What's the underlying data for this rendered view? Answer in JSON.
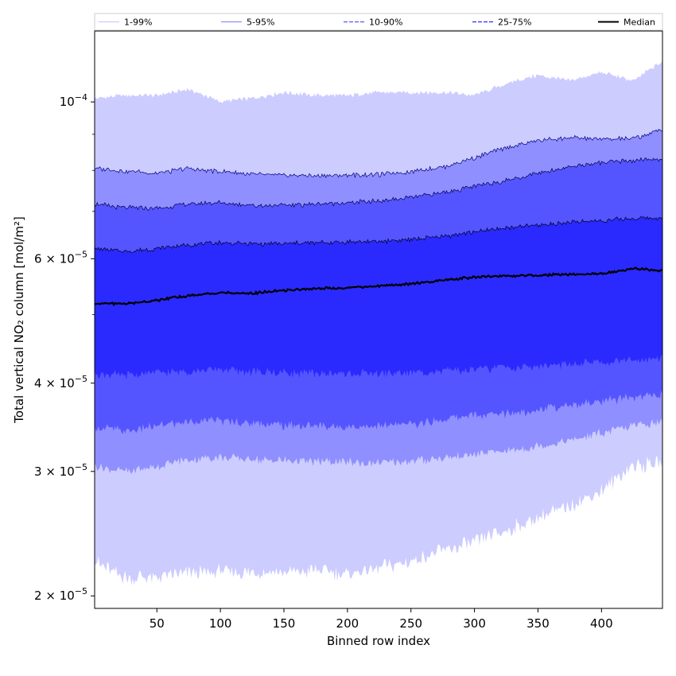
{
  "chart_data": {
    "type": "area",
    "title": "",
    "xlabel": "Binned row index",
    "ylabel": "Total vertical NO₂ column [mol/m²]",
    "xlim": [
      1,
      448
    ],
    "ylim": [
      1.92e-05,
      0.000126
    ],
    "yscale": "log",
    "x_ticks": [
      50,
      100,
      150,
      200,
      250,
      300,
      350,
      400
    ],
    "y_ticks": [
      {
        "value": 2e-05,
        "mantissa": "2",
        "exp": "−5"
      },
      {
        "value": 3e-05,
        "mantissa": "3",
        "exp": "−5"
      },
      {
        "value": 4e-05,
        "mantissa": "4",
        "exp": "−5"
      },
      {
        "value": 6e-05,
        "mantissa": "6",
        "exp": "−5"
      },
      {
        "value": 0.0001,
        "mantissa": "",
        "exp": "−4"
      }
    ],
    "y_minor_ticks": [
      5e-05,
      7e-05,
      8e-05,
      9e-05
    ],
    "grid": false,
    "legend_position": "top (horizontal strip above plot)",
    "x": [
      1,
      25,
      50,
      75,
      100,
      125,
      150,
      175,
      200,
      225,
      250,
      275,
      300,
      325,
      350,
      375,
      400,
      425,
      448
    ],
    "bands": [
      {
        "name": "1-99%",
        "color": "#ccccff",
        "edge": "#ccccff",
        "lower": [
          2.24e-05,
          2.12e-05,
          2.13e-05,
          2.15e-05,
          2.17e-05,
          2.16e-05,
          2.16e-05,
          2.17e-05,
          2.15e-05,
          2.19e-05,
          2.24e-05,
          2.31e-05,
          2.38e-05,
          2.47e-05,
          2.58e-05,
          2.68e-05,
          2.82e-05,
          3.06e-05,
          3.08e-05
        ],
        "upper": [
          0.000101,
          0.000102,
          0.000102,
          0.000104,
          0.0001,
          0.000101,
          0.000103,
          0.000102,
          0.000102,
          0.000103,
          0.000103,
          0.000103,
          0.000102,
          0.000106,
          0.000109,
          0.000107,
          0.00011,
          0.000107,
          0.000114
        ]
      },
      {
        "name": "5-95%",
        "color": "#8f8fff",
        "edge": "#000080",
        "lower": [
          3.05e-05,
          3e-05,
          3.05e-05,
          3.12e-05,
          3.14e-05,
          3.12e-05,
          3.11e-05,
          3.1e-05,
          3.09e-05,
          3.09e-05,
          3.1e-05,
          3.13e-05,
          3.17e-05,
          3.21e-05,
          3.26e-05,
          3.32e-05,
          3.4e-05,
          3.48e-05,
          3.52e-05
        ],
        "upper": [
          8.05e-05,
          7.98e-05,
          7.93e-05,
          8.05e-05,
          7.97e-05,
          7.9e-05,
          7.87e-05,
          7.86e-05,
          7.88e-05,
          7.89e-05,
          7.97e-05,
          8.09e-05,
          8.33e-05,
          8.62e-05,
          8.82e-05,
          8.9e-05,
          8.86e-05,
          8.87e-05,
          9.15e-05
        ]
      },
      {
        "name": "10-90%",
        "color": "#5555ff",
        "edge": "#000050",
        "lower": [
          3.47e-05,
          3.42e-05,
          3.48e-05,
          3.53e-05,
          3.54e-05,
          3.51e-05,
          3.49e-05,
          3.48e-05,
          3.47e-05,
          3.48e-05,
          3.5e-05,
          3.55e-05,
          3.6e-05,
          3.63e-05,
          3.67e-05,
          3.72e-05,
          3.77e-05,
          3.82e-05,
          3.86e-05
        ],
        "upper": [
          7.17e-05,
          7.08e-05,
          7.07e-05,
          7.17e-05,
          7.2e-05,
          7.14e-05,
          7.14e-05,
          7.17e-05,
          7.2e-05,
          7.24e-05,
          7.32e-05,
          7.44e-05,
          7.59e-05,
          7.75e-05,
          7.92e-05,
          8.1e-05,
          8.2e-05,
          8.26e-05,
          8.3e-05
        ]
      },
      {
        "name": "25-75%",
        "color": "#2a2aff",
        "edge": "#000020",
        "lower": [
          4.13e-05,
          4.1e-05,
          4.14e-05,
          4.16e-05,
          4.18e-05,
          4.15e-05,
          4.14e-05,
          4.13e-05,
          4.12e-05,
          4.13e-05,
          4.14e-05,
          4.16e-05,
          4.19e-05,
          4.21e-05,
          4.23e-05,
          4.25e-05,
          4.28e-05,
          4.31e-05,
          4.35e-05
        ],
        "upper": [
          6.2e-05,
          6.14e-05,
          6.2e-05,
          6.28e-05,
          6.32e-05,
          6.3e-05,
          6.3e-05,
          6.32e-05,
          6.34e-05,
          6.35e-05,
          6.39e-05,
          6.45e-05,
          6.55e-05,
          6.63e-05,
          6.69e-05,
          6.75e-05,
          6.8e-05,
          6.84e-05,
          6.86e-05
        ]
      }
    ],
    "median": {
      "name": "Median",
      "color": "#000000",
      "values": [
        5.19e-05,
        5.18e-05,
        5.24e-05,
        5.32e-05,
        5.37e-05,
        5.36e-05,
        5.41e-05,
        5.44e-05,
        5.46e-05,
        5.49e-05,
        5.53e-05,
        5.59e-05,
        5.65e-05,
        5.67e-05,
        5.69e-05,
        5.7e-05,
        5.71e-05,
        5.81e-05,
        5.77e-05
      ]
    },
    "legend": [
      {
        "label": "1-99%",
        "color": "#ccccff",
        "dash": "solid"
      },
      {
        "label": "5-95%",
        "color": "#8f8fff",
        "dash": "solid"
      },
      {
        "label": "10-90%",
        "color": "#5555ff",
        "dash": "dashed"
      },
      {
        "label": "25-75%",
        "color": "#2a2aff",
        "dash": "dashed"
      },
      {
        "label": "Median",
        "color": "#000000",
        "dash": "solid"
      }
    ]
  }
}
